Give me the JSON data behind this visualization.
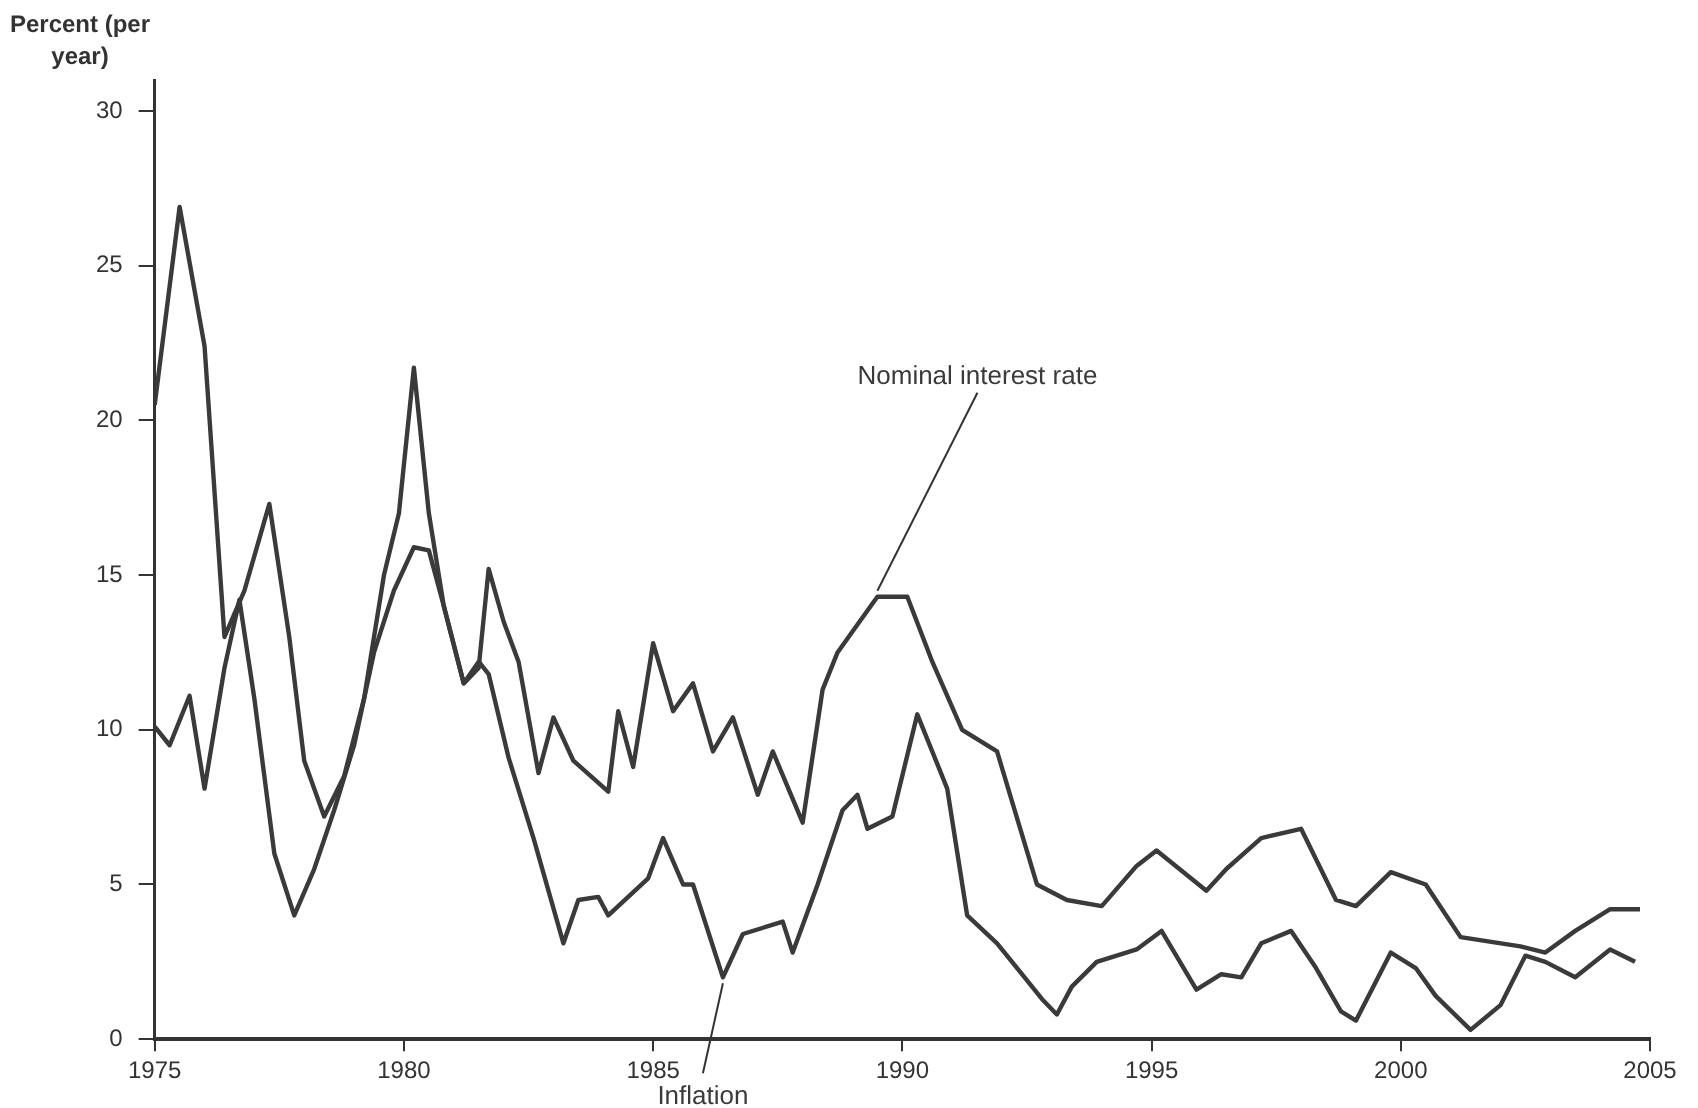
{
  "chart_data": {
    "type": "line",
    "ylabel": "Percent (per year)",
    "xlim": [
      1975,
      2005
    ],
    "xticks": [
      1975,
      1980,
      1985,
      1990,
      1995,
      2000,
      2005
    ],
    "ylim": [
      0,
      31
    ],
    "yticks": [
      0,
      5,
      10,
      15,
      20,
      25,
      30
    ],
    "grid": false,
    "legend": false,
    "marker": "none",
    "line_style": "solid",
    "series": [
      {
        "name": "Inflation",
        "color": "#3a3a3a",
        "x": [
          1975.0,
          1975.5,
          1976.0,
          1976.4,
          1976.8,
          1977.3,
          1977.7,
          1978.0,
          1978.4,
          1978.8,
          1979.2,
          1979.6,
          1979.9,
          1980.2,
          1980.5,
          1980.8,
          1981.2,
          1981.5,
          1981.7,
          1982.1,
          1982.6,
          1983.2,
          1983.5,
          1983.9,
          1984.1,
          1984.5,
          1984.9,
          1985.2,
          1985.6,
          1985.8,
          1986.4,
          1986.8,
          1987.6,
          1987.8,
          1988.3,
          1988.8,
          1989.1,
          1989.3,
          1989.8,
          1990.3,
          1990.9,
          1991.3,
          1991.9,
          1992.8,
          1993.1,
          1993.4,
          1993.9,
          1994.7,
          1995.2,
          1995.9,
          1996.4,
          1996.8,
          1997.2,
          1997.8,
          1998.3,
          1998.8,
          1999.1,
          1999.8,
          2000.3,
          2000.7,
          2001.4,
          2002.0,
          2002.5,
          2002.9,
          2003.5,
          2004.2,
          2004.7
        ],
        "values": [
          20.5,
          26.9,
          22.4,
          13.0,
          14.5,
          17.3,
          13,
          9,
          7.2,
          8.5,
          11,
          15,
          17,
          21.7,
          17,
          14,
          11.5,
          12.2,
          11.8,
          9.1,
          6.5,
          3.1,
          4.5,
          4.6,
          4.0,
          4.6,
          5.2,
          6.5,
          5.0,
          5.0,
          2.0,
          3.4,
          3.8,
          2.8,
          5.0,
          7.4,
          7.9,
          6.8,
          7.2,
          10.5,
          8.1,
          4.0,
          3.1,
          1.3,
          0.8,
          1.7,
          2.5,
          2.9,
          3.5,
          1.6,
          2.1,
          2.0,
          3.1,
          3.5,
          2.3,
          0.9,
          0.6,
          2.8,
          2.3,
          1.4,
          0.3,
          1.1,
          2.7,
          2.5,
          2.0,
          2.9,
          2.5
        ]
      },
      {
        "name": "Nominal interest rate",
        "color": "#3a3a3a",
        "x": [
          1975.0,
          1975.3,
          1975.7,
          1976.0,
          1976.4,
          1976.7,
          1977.0,
          1977.4,
          1977.8,
          1978.2,
          1978.6,
          1979.0,
          1979.4,
          1979.8,
          1980.2,
          1980.5,
          1980.8,
          1981.2,
          1981.5,
          1981.7,
          1982.0,
          1982.3,
          1982.7,
          1983.0,
          1983.4,
          1984.1,
          1984.3,
          1984.6,
          1985.0,
          1985.4,
          1985.8,
          1986.2,
          1986.6,
          1987.1,
          1987.4,
          1988.0,
          1988.4,
          1988.7,
          1989.1,
          1989.5,
          1990.1,
          1990.6,
          1991.2,
          1991.9,
          1992.7,
          1993.3,
          1994.0,
          1994.7,
          1995.1,
          1996.1,
          1996.5,
          1997.2,
          1998.0,
          1998.7,
          1999.1,
          1999.8,
          2000.5,
          2001.2,
          2002.4,
          2002.9,
          2003.5,
          2004.2,
          2004.8
        ],
        "values": [
          10.1,
          9.5,
          11.1,
          8.1,
          12,
          14.2,
          11,
          6,
          4.0,
          5.5,
          7.4,
          9.5,
          12.5,
          14.5,
          15.9,
          15.8,
          14,
          11.5,
          12,
          15.2,
          13.5,
          12.2,
          8.6,
          10.4,
          9,
          8.0,
          10.6,
          8.8,
          12.8,
          10.6,
          11.5,
          9.3,
          10.4,
          7.9,
          9.3,
          7.0,
          11.3,
          12.5,
          13.4,
          14.3,
          14.3,
          12.2,
          10.0,
          9.3,
          5.0,
          4.5,
          4.3,
          5.6,
          6.1,
          4.8,
          5.5,
          6.5,
          6.8,
          4.5,
          4.3,
          5.4,
          5.0,
          3.3,
          3.0,
          2.8,
          3.5,
          4.2,
          4.2
        ]
      }
    ]
  }
}
